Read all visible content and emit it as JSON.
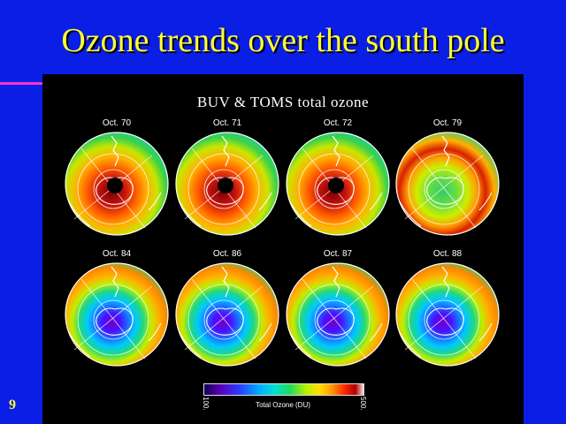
{
  "slide": {
    "title": "Ozone trends over the south pole",
    "number": "9"
  },
  "figure": {
    "title": "BUV & TOMS total ozone",
    "colorbar": {
      "label": "Total Ozone (DU)",
      "min": "100.",
      "max": "500."
    },
    "maps": [
      {
        "label": "Oct. 70",
        "style": "warm",
        "south_pole_hole": true
      },
      {
        "label": "Oct. 71",
        "style": "warm",
        "south_pole_hole": true
      },
      {
        "label": "Oct. 72",
        "style": "warm",
        "south_pole_hole": true
      },
      {
        "label": "Oct. 79",
        "style": "green",
        "south_pole_hole": false
      },
      {
        "label": "Oct. 84",
        "style": "hole",
        "south_pole_hole": false
      },
      {
        "label": "Oct. 86",
        "style": "hole",
        "south_pole_hole": false
      },
      {
        "label": "Oct. 87",
        "style": "hole",
        "south_pole_hole": false
      },
      {
        "label": "Oct. 88",
        "style": "hole",
        "south_pole_hole": false
      }
    ]
  },
  "colors": {
    "background": "#0a1ee6",
    "title": "#ffff33",
    "accent": "#ff33cc"
  }
}
